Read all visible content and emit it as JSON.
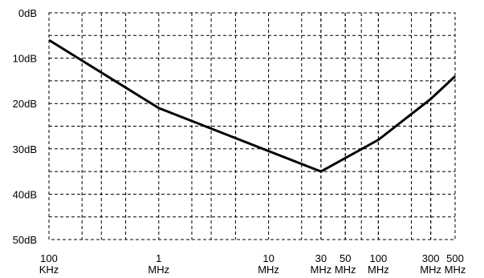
{
  "chart_data": {
    "type": "line",
    "title": "",
    "xlabel": "",
    "ylabel": "",
    "x_scale": "log",
    "y_inverted": true,
    "grid": true,
    "xlim": [
      100000,
      500000000
    ],
    "ylim": [
      0,
      50
    ],
    "x_ticks": [
      {
        "value": 100000,
        "label": [
          "100",
          "KHz"
        ]
      },
      {
        "value": 1000000,
        "label": [
          "1",
          "MHz"
        ]
      },
      {
        "value": 10000000,
        "label": [
          "10",
          "MHz"
        ]
      },
      {
        "value": 30000000,
        "label": [
          "30",
          "MHz"
        ]
      },
      {
        "value": 50000000,
        "label": [
          "50",
          "MHz"
        ]
      },
      {
        "value": 100000000,
        "label": [
          "100",
          "MHz"
        ]
      },
      {
        "value": 300000000,
        "label": [
          "300",
          "MHz"
        ]
      },
      {
        "value": 500000000,
        "label": [
          "500",
          "MHz"
        ]
      }
    ],
    "y_ticks": [
      {
        "value": 0,
        "label": "0dB"
      },
      {
        "value": 10,
        "label": "10dB"
      },
      {
        "value": 20,
        "label": "20dB"
      },
      {
        "value": 30,
        "label": "30dB"
      },
      {
        "value": 40,
        "label": "40dB"
      },
      {
        "value": 50,
        "label": "50dB"
      }
    ],
    "minor_x_grid": [
      200000,
      300000,
      500000,
      2000000,
      3000000,
      5000000,
      20000000,
      30000000,
      50000000,
      70000000,
      100000000,
      200000000,
      300000000
    ],
    "minor_y_grid": [
      5,
      15,
      25,
      35,
      45
    ],
    "series": [
      {
        "x": [
          100000,
          1000000,
          30000000,
          100000000,
          300000000,
          500000000
        ],
        "y": [
          6,
          21,
          35,
          28,
          19,
          14
        ]
      }
    ]
  }
}
